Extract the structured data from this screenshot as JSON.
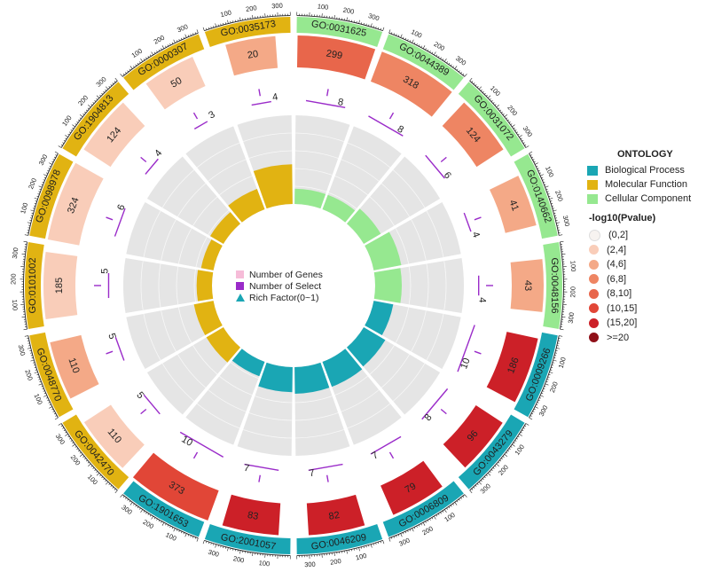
{
  "chart_data": {
    "type": "circular_go_enrichment",
    "gene_axis_ticks": [
      100,
      200,
      300
    ],
    "gene_axis_max": 350,
    "terms": [
      {
        "id": "GO:0031625",
        "ontology": "Cellular Component",
        "genes": 299,
        "select": 8,
        "rich_factor": 0.03,
        "pvalue_bin": "(8,10]"
      },
      {
        "id": "GO:0044389",
        "ontology": "Cellular Component",
        "genes": 318,
        "select": 8,
        "rich_factor": 0.03,
        "pvalue_bin": "(6,8]"
      },
      {
        "id": "GO:0031072",
        "ontology": "Cellular Component",
        "genes": 124,
        "select": 6,
        "rich_factor": 0.05,
        "pvalue_bin": "(6,8]"
      },
      {
        "id": "GO:0140662",
        "ontology": "Cellular Component",
        "genes": 41,
        "select": 4,
        "rich_factor": 0.1,
        "pvalue_bin": "(4,6]"
      },
      {
        "id": "GO:0048156",
        "ontology": "Cellular Component",
        "genes": 43,
        "select": 4,
        "rich_factor": 0.09,
        "pvalue_bin": "(4,6]"
      },
      {
        "id": "GO:0009266",
        "ontology": "Biological Process",
        "genes": 186,
        "select": 10,
        "rich_factor": 0.05,
        "pvalue_bin": "(15,20]"
      },
      {
        "id": "GO:0043279",
        "ontology": "Biological Process",
        "genes": 96,
        "select": 8,
        "rich_factor": 0.08,
        "pvalue_bin": "(15,20]"
      },
      {
        "id": "GO:0006809",
        "ontology": "Biological Process",
        "genes": 79,
        "select": 7,
        "rich_factor": 0.09,
        "pvalue_bin": "(15,20]"
      },
      {
        "id": "GO:0046209",
        "ontology": "Biological Process",
        "genes": 82,
        "select": 7,
        "rich_factor": 0.09,
        "pvalue_bin": "(15,20]"
      },
      {
        "id": "GO:2001057",
        "ontology": "Biological Process",
        "genes": 83,
        "select": 7,
        "rich_factor": 0.08,
        "pvalue_bin": "(15,20]"
      },
      {
        "id": "GO:1901653",
        "ontology": "Biological Process",
        "genes": 373,
        "select": 10,
        "rich_factor": 0.03,
        "pvalue_bin": "(10,15]"
      },
      {
        "id": "GO:0042470",
        "ontology": "Molecular Function",
        "genes": 110,
        "select": 5,
        "rich_factor": 0.05,
        "pvalue_bin": "(2,4]"
      },
      {
        "id": "GO:0048770",
        "ontology": "Molecular Function",
        "genes": 110,
        "select": 5,
        "rich_factor": 0.05,
        "pvalue_bin": "(4,6]"
      },
      {
        "id": "GO:0101002",
        "ontology": "Molecular Function",
        "genes": 185,
        "select": 5,
        "rich_factor": 0.03,
        "pvalue_bin": "(2,4]"
      },
      {
        "id": "GO:0098978",
        "ontology": "Molecular Function",
        "genes": 324,
        "select": 6,
        "rich_factor": 0.02,
        "pvalue_bin": "(2,4]"
      },
      {
        "id": "GO:1904813",
        "ontology": "Molecular Function",
        "genes": 124,
        "select": 4,
        "rich_factor": 0.03,
        "pvalue_bin": "(2,4]"
      },
      {
        "id": "GO:0000307",
        "ontology": "Molecular Function",
        "genes": 50,
        "select": 3,
        "rich_factor": 0.06,
        "pvalue_bin": "(2,4]"
      },
      {
        "id": "GO:0035173",
        "ontology": "Molecular Function",
        "genes": 20,
        "select": 4,
        "rich_factor": 0.2,
        "pvalue_bin": "(4,6]"
      }
    ],
    "center_legend": [
      {
        "label": "Number of Genes",
        "color": "#f6bcd8",
        "shape": "square"
      },
      {
        "label": "Number of Select",
        "color": "#9a2bc9",
        "shape": "square"
      },
      {
        "label": "Rich Factor(0~1)",
        "color": "#1aa6b4",
        "shape": "triangle"
      }
    ]
  },
  "legend": {
    "ontology_title": "ONTOLOGY",
    "ontology": [
      {
        "label": "Biological Process",
        "color": "#1aa6b4"
      },
      {
        "label": "Molecular Function",
        "color": "#e1b312"
      },
      {
        "label": "Cellular Component",
        "color": "#96e890"
      }
    ],
    "pvalue_title": "-log10(Pvalue)",
    "pvalue": [
      {
        "label": "(0,2]",
        "color": "#f7f3f0"
      },
      {
        "label": "(2,4]",
        "color": "#f9cdb9"
      },
      {
        "label": "(4,6]",
        "color": "#f4a987"
      },
      {
        "label": "(6,8]",
        "color": "#ee8563"
      },
      {
        "label": "(8,10]",
        "color": "#e8664b"
      },
      {
        "label": "(10,15]",
        "color": "#e14637"
      },
      {
        "label": "(15,20]",
        "color": "#cc2028"
      },
      {
        "label": ">=20",
        "color": "#8f0f18"
      }
    ]
  }
}
